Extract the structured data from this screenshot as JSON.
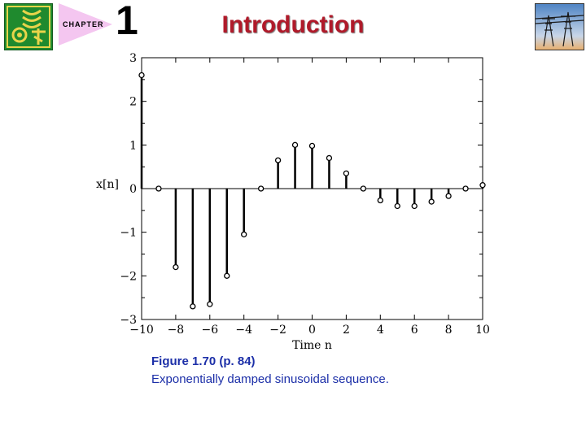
{
  "header": {
    "chapter_label": "CHAPTER",
    "chapter_number": "1",
    "title": "Introduction"
  },
  "caption": {
    "figure_label": "Figure 1.70  (p. 84)",
    "description": "Exponentially damped sinusoidal sequence."
  },
  "colors": {
    "title": "#b01a2a",
    "caption": "#1c2fa8",
    "logo": "#1f8a2e",
    "chapter_band": "#f4c6f0"
  },
  "chart_data": {
    "type": "stem",
    "xlabel": "Time n",
    "ylabel": "x[n]",
    "xlim": [
      -10,
      10
    ],
    "ylim": [
      -3,
      3
    ],
    "xticks": [
      "−10",
      "−8",
      "−6",
      "−4",
      "−2",
      "0",
      "2",
      "4",
      "6",
      "8",
      "10"
    ],
    "yticks": [
      "−3",
      "−2",
      "−1",
      "0",
      "1",
      "2",
      "3"
    ],
    "x": [
      -10,
      -9,
      -8,
      -7,
      -6,
      -5,
      -4,
      -3,
      -2,
      -1,
      0,
      1,
      2,
      3,
      4,
      5,
      6,
      7,
      8,
      9,
      10
    ],
    "values": [
      2.6,
      0,
      -1.8,
      -2.7,
      -2.65,
      -2.0,
      -1.05,
      0,
      0.65,
      1.0,
      0.98,
      0.7,
      0.35,
      0,
      -0.27,
      -0.4,
      -0.4,
      -0.3,
      -0.17,
      0,
      0.08
    ]
  }
}
